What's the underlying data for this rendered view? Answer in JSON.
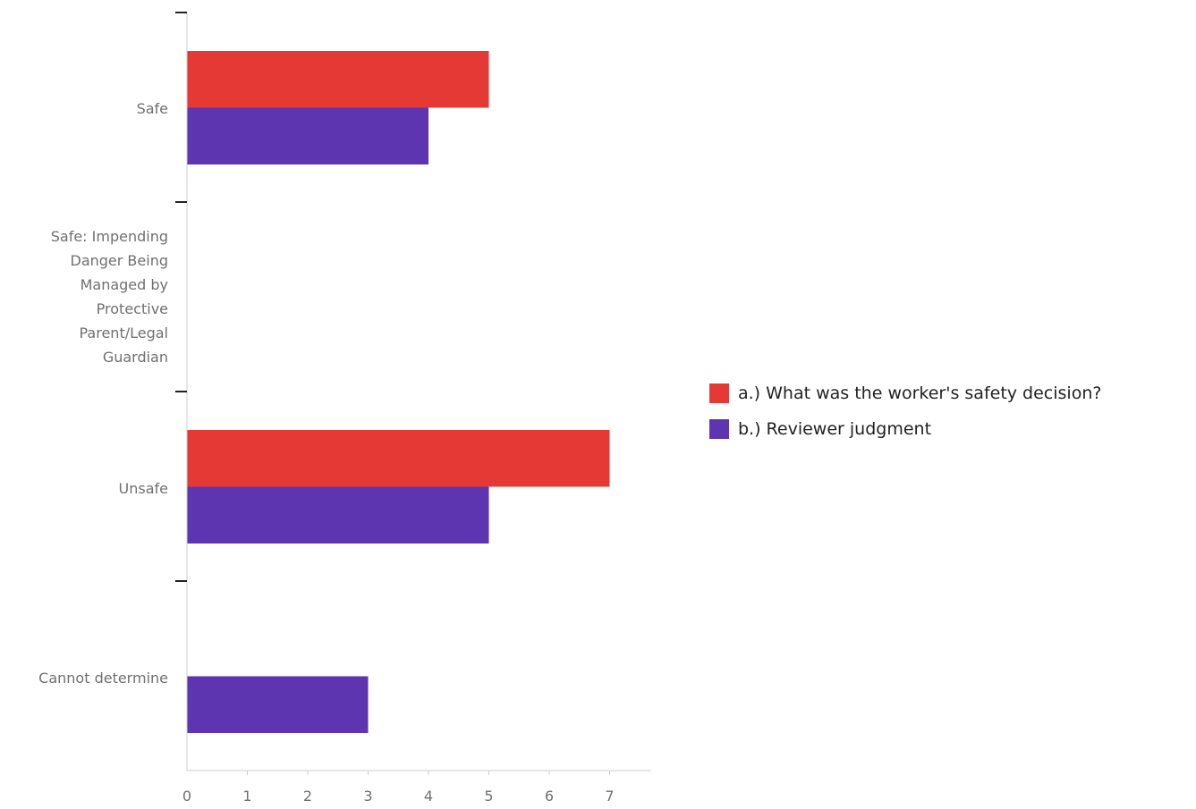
{
  "chart_data": {
    "type": "bar",
    "orientation": "horizontal",
    "categories": [
      "Safe",
      "Safe: Impending Danger Being Managed by Protective Parent/Legal Guardian",
      "Unsafe",
      "Cannot determine"
    ],
    "category_display": [
      "Safe",
      "Safe: Impending\nDanger Being\nManaged by\nProtective\nParent/Legal\nGuardian",
      "Unsafe",
      "Cannot determine"
    ],
    "series": [
      {
        "name": "a.) What was the worker's safety decision?",
        "color": "#e53935",
        "values": [
          5,
          0,
          7,
          0
        ]
      },
      {
        "name": "b.) Reviewer judgment",
        "color": "#5e35b1",
        "values": [
          4,
          0,
          5,
          3
        ]
      }
    ],
    "xlim": [
      0,
      7.7
    ],
    "x_ticks": [
      "0",
      "1",
      "2",
      "3",
      "4",
      "5",
      "6",
      "7"
    ],
    "grid": false,
    "legend_position": "right"
  }
}
